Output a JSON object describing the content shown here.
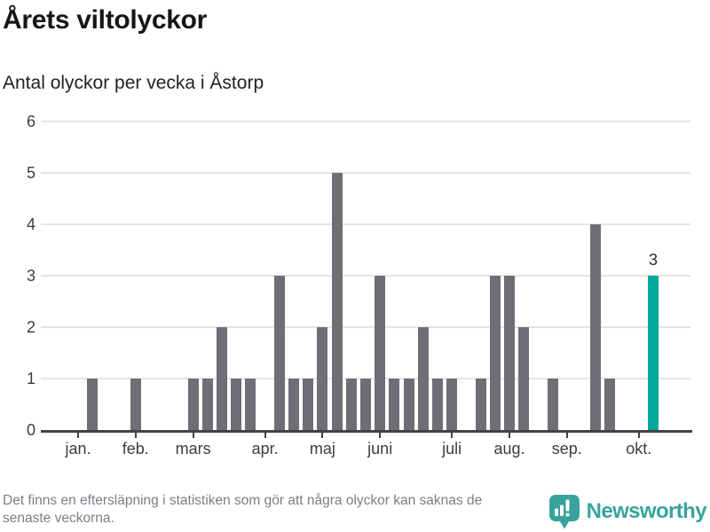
{
  "header": {
    "title": "Årets viltolyckor",
    "subtitle": "Antal olyckor per vecka i Åstorp"
  },
  "chart_data": {
    "type": "bar",
    "title": "Årets viltolyckor",
    "subtitle": "Antal olyckor per vecka i Åstorp",
    "ylabel": "",
    "xlabel": "",
    "ylim": [
      0,
      6
    ],
    "y_ticks": [
      0,
      1,
      2,
      3,
      4,
      5,
      6
    ],
    "grid": true,
    "categories_unit": "vecka (week index, jan-okt)",
    "values": [
      0,
      1,
      0,
      0,
      1,
      0,
      0,
      0,
      1,
      1,
      2,
      1,
      1,
      0,
      3,
      1,
      1,
      2,
      5,
      1,
      1,
      3,
      1,
      1,
      2,
      1,
      1,
      0,
      1,
      3,
      3,
      2,
      0,
      1,
      0,
      0,
      4,
      1,
      0,
      0,
      3
    ],
    "month_ticks": [
      {
        "label": "jan.",
        "slot": 0
      },
      {
        "label": "feb.",
        "slot": 4
      },
      {
        "label": "mars",
        "slot": 8
      },
      {
        "label": "apr.",
        "slot": 13
      },
      {
        "label": "maj",
        "slot": 17
      },
      {
        "label": "juni",
        "slot": 21
      },
      {
        "label": "juli",
        "slot": 26
      },
      {
        "label": "aug.",
        "slot": 30
      },
      {
        "label": "sep.",
        "slot": 34
      },
      {
        "label": "okt.",
        "slot": 39
      }
    ],
    "highlight": {
      "slot": 40,
      "value": 3,
      "label": "3"
    },
    "legend_position": "none"
  },
  "colors": {
    "bar_default": "#6e6e76",
    "bar_highlight": "#00a79b",
    "logo_teal": "#38a39c",
    "gridline": "#e4e4e4",
    "axis": "#434343",
    "footer_text": "#7d7d86"
  },
  "footer": {
    "note_line1": "Det finns en eftersläpning i statistiken som gör att några olyckor kan saknas de",
    "note_line2": "senaste veckorna."
  },
  "branding": {
    "name": "Newsworthy"
  }
}
